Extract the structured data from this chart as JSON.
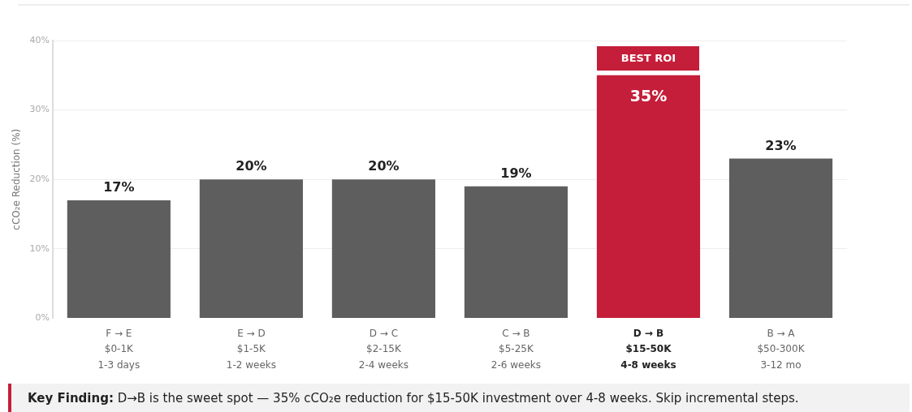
{
  "chart_data": {
    "type": "bar",
    "ylabel": "cCO₂e Reduction (%)",
    "categories": [
      "F → E\n$0-1K\n1-3 days",
      "E → D\n$1-5K\n1-2 weeks",
      "D → C\n$2-15K\n2-4 weeks",
      "C → B\n$5-25K\n2-6 weeks",
      "D → B\n$15-50K\n4-8 weeks",
      "B → A\n$50-300K\n3-12 mo"
    ],
    "values": [
      17,
      20,
      20,
      19,
      35,
      23
    ],
    "colors": [
      "#5e5e5e",
      "#5e5e5e",
      "#5e5e5e",
      "#5e5e5e",
      "#c41e3a",
      "#5e5e5e"
    ],
    "value_labels": [
      "17%",
      "20%",
      "20%",
      "19%",
      "35%",
      "23%"
    ],
    "ylim": [
      0,
      40
    ],
    "yticks": [
      {
        "value": 0,
        "label": "0%"
      },
      {
        "value": 10,
        "label": "10%"
      },
      {
        "value": 20,
        "label": "20%"
      },
      {
        "value": 30,
        "label": "30%"
      },
      {
        "value": 40,
        "label": "40%"
      }
    ],
    "grid": "y",
    "legend": false,
    "annotations": [
      {
        "text": "BEST ROI",
        "x": "D → B\n$15-50K\n4-8 weeks",
        "y": 35
      },
      "Key Finding: D→B is the sweet spot — 35% cCO₂e reduction for $15-50K investment over 4-8 weeks. Skip incremental steps."
    ]
  }
}
